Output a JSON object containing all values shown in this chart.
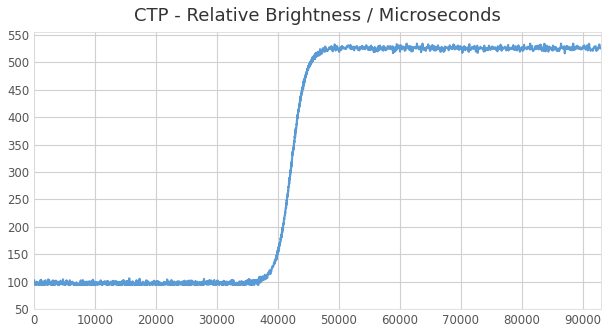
{
  "title": "CTP - Relative Brightness / Microseconds",
  "title_fontsize": 13,
  "xlim": [
    0,
    93000
  ],
  "ylim": [
    50,
    555
  ],
  "xticks": [
    0,
    10000,
    20000,
    30000,
    40000,
    50000,
    60000,
    70000,
    80000,
    90000
  ],
  "yticks": [
    50,
    100,
    150,
    200,
    250,
    300,
    350,
    400,
    450,
    500,
    550
  ],
  "line_color": "#5B9BD5",
  "line_width": 1.5,
  "background_color": "#FFFFFF",
  "plot_bg_color": "#FFFFFF",
  "grid_color": "#D0D0D0",
  "sigmoid_x0": 42200,
  "sigmoid_k": 0.00085,
  "y_min": 97,
  "y_max": 526,
  "noise_amp": 2.5
}
